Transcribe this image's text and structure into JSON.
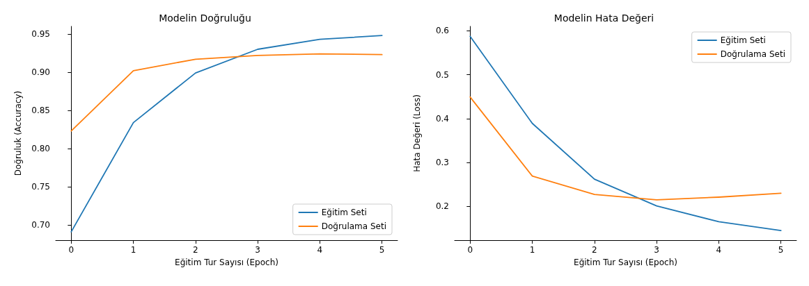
{
  "chart_data": [
    {
      "type": "line",
      "title": "Modelin Doğruluğu",
      "xlabel": "Eğitim Tur Sayısı (Epoch)",
      "ylabel": "Doğruluk (Accuracy)",
      "x": [
        0,
        1,
        2,
        3,
        4,
        5
      ],
      "series": [
        {
          "name": "Eğitim Seti",
          "color": "#1f77b4",
          "values": [
            0.691,
            0.834,
            0.899,
            0.93,
            0.943,
            0.948
          ]
        },
        {
          "name": "Doğrulama Seti",
          "color": "#ff7f0e",
          "values": [
            0.823,
            0.902,
            0.917,
            0.922,
            0.924,
            0.923
          ]
        }
      ],
      "xlim": [
        -0.25,
        5.25
      ],
      "xticks": [
        0,
        1,
        2,
        3,
        4,
        5
      ],
      "ylim": [
        0.68,
        0.96
      ],
      "yticks": [
        {
          "value": 0.7,
          "label": "0.70"
        },
        {
          "value": 0.75,
          "label": "0.75"
        },
        {
          "value": 0.8,
          "label": "0.80"
        },
        {
          "value": 0.85,
          "label": "0.85"
        },
        {
          "value": 0.9,
          "label": "0.90"
        },
        {
          "value": 0.95,
          "label": "0.95"
        }
      ],
      "grid": false,
      "legend": "bottom right",
      "marker": "none",
      "line_style": "solid"
    },
    {
      "type": "line",
      "title": "Modelin Hata Değeri",
      "xlabel": "Eğitim Tur Sayısı (Epoch)",
      "ylabel": "Hata Değeri (Loss)",
      "x": [
        0,
        1,
        2,
        3,
        4,
        5
      ],
      "series": [
        {
          "name": "Eğitim Seti",
          "color": "#1f77b4",
          "values": [
            0.587,
            0.389,
            0.262,
            0.201,
            0.165,
            0.145
          ]
        },
        {
          "name": "Doğrulama Seti",
          "color": "#ff7f0e",
          "values": [
            0.449,
            0.269,
            0.227,
            0.215,
            0.221,
            0.23
          ]
        }
      ],
      "xlim": [
        -0.25,
        5.25
      ],
      "xticks": [
        0,
        1,
        2,
        3,
        4,
        5
      ],
      "ylim": [
        0.123,
        0.61
      ],
      "yticks": [
        0.2,
        0.3,
        0.4,
        0.5,
        0.6
      ],
      "grid": false,
      "legend": "top right",
      "marker": "none",
      "line_style": "solid"
    }
  ]
}
